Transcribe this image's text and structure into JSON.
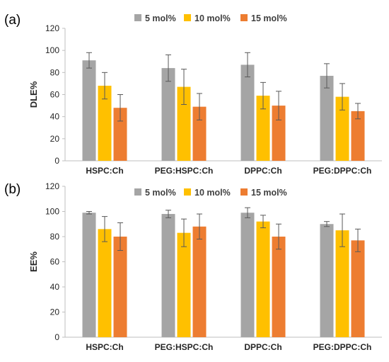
{
  "chart_data": [
    {
      "panel_label": "(a)",
      "type": "bar",
      "ylabel": "DLE%",
      "ylim": [
        0,
        120
      ],
      "yticks": [
        0,
        20,
        40,
        60,
        80,
        100,
        120
      ],
      "categories": [
        "HSPC:Ch",
        "PEG:HSPC:Ch",
        "DPPC:Ch",
        "PEG:DPPC:Ch"
      ],
      "legend_position": "top",
      "grid": false,
      "series": [
        {
          "name": "5 mol%",
          "color": "#a5a5a5",
          "values": [
            91,
            84,
            87,
            77
          ],
          "errors": [
            7,
            12,
            11,
            11
          ]
        },
        {
          "name": "10 mol%",
          "color": "#ffc000",
          "values": [
            68,
            67,
            59,
            58
          ],
          "errors": [
            12,
            16,
            12,
            12
          ]
        },
        {
          "name": "15 mol%",
          "color": "#ed7d31",
          "values": [
            48,
            49,
            50,
            45
          ],
          "errors": [
            12,
            12,
            13,
            7
          ]
        }
      ]
    },
    {
      "panel_label": "(b)",
      "type": "bar",
      "ylabel": "EE%",
      "ylim": [
        0,
        120
      ],
      "yticks": [
        0,
        20,
        40,
        60,
        80,
        100,
        120
      ],
      "categories": [
        "HSPC:Ch",
        "PEG:HSPC:Ch",
        "DPPC:Ch",
        "PEG:DPPC:Ch"
      ],
      "legend_position": "top",
      "grid": false,
      "series": [
        {
          "name": "5 mol%",
          "color": "#a5a5a5",
          "values": [
            99,
            98,
            99,
            90
          ],
          "errors": [
            1,
            3,
            4,
            2
          ]
        },
        {
          "name": "10 mol%",
          "color": "#ffc000",
          "values": [
            86,
            83,
            92,
            85
          ],
          "errors": [
            10,
            11,
            5,
            13
          ]
        },
        {
          "name": "15 mol%",
          "color": "#ed7d31",
          "values": [
            80,
            88,
            80,
            77
          ],
          "errors": [
            11,
            10,
            10,
            9
          ]
        }
      ]
    }
  ]
}
